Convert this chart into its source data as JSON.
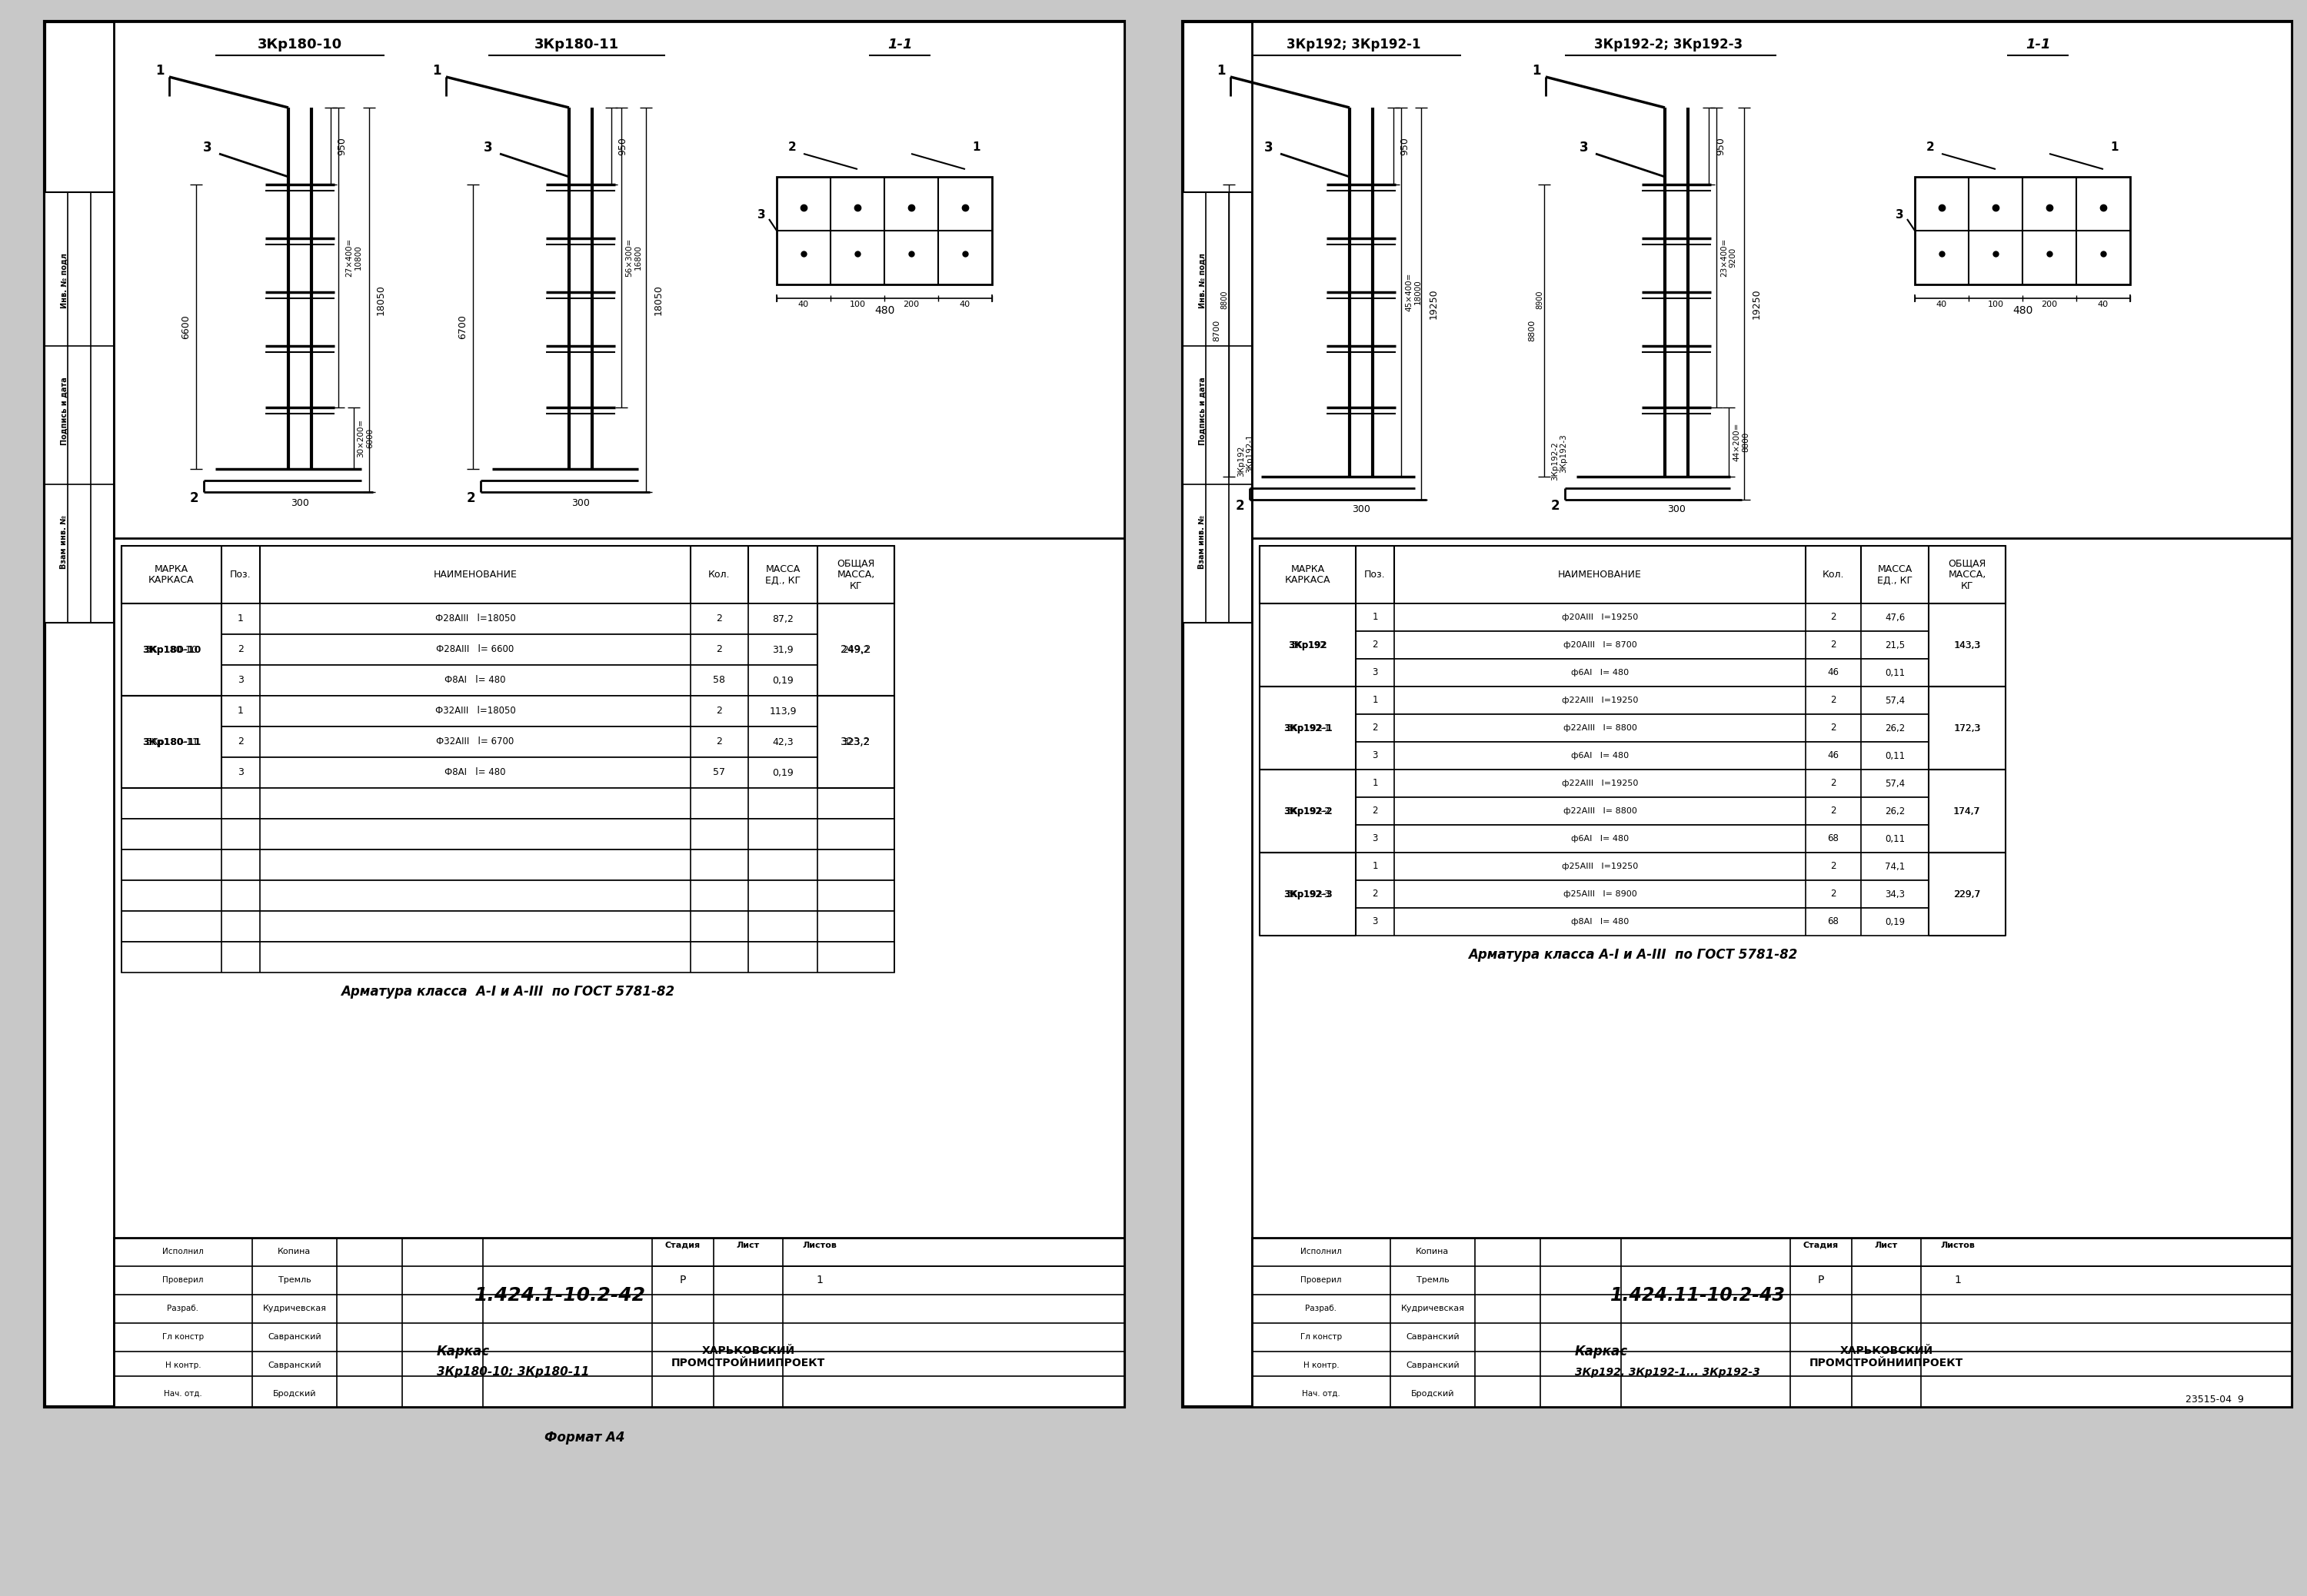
{
  "bg_color": "#c8c8c8",
  "page_bg": "#ffffff",
  "table_left_rows": [
    [
      "",
      "1",
      "Ф28АIII   l=18050",
      "2",
      "87,2",
      ""
    ],
    [
      "3Кр180-10",
      "2",
      "Ф28АIII   l= 6600",
      "2",
      "31,9",
      "249,2"
    ],
    [
      "",
      "3",
      "Ф8АI   l= 480",
      "58",
      "0,19",
      ""
    ],
    [
      "",
      "1",
      "Ф32АIII   l=18050",
      "2",
      "113,9",
      ""
    ],
    [
      "3Кр180-11",
      "2",
      "Ф32АIII   l= 6700",
      "2",
      "42,3",
      "323,2"
    ],
    [
      "",
      "3",
      "Ф8АI   l= 480",
      "57",
      "0,19",
      ""
    ]
  ],
  "table_right_rows": [
    [
      "",
      "1",
      "ф20АIII   l=19250",
      "2",
      "47,6",
      ""
    ],
    [
      "3Кр192",
      "2",
      "ф20АIII   l= 8700",
      "2",
      "21,5",
      "143,3"
    ],
    [
      "",
      "3",
      "ф6АI   l= 480",
      "46",
      "0,11",
      ""
    ],
    [
      "",
      "1",
      "ф22АIII   l=19250",
      "2",
      "57,4",
      ""
    ],
    [
      "3Кр192-1",
      "2",
      "ф22АIII   l= 8800",
      "2",
      "26,2",
      "172,3"
    ],
    [
      "",
      "3",
      "ф6АI   l= 480",
      "46",
      "0,11",
      ""
    ],
    [
      "",
      "1",
      "ф22АIII   l=19250",
      "2",
      "57,4",
      ""
    ],
    [
      "3Кр192-2",
      "2",
      "ф22АIII   l= 8800",
      "2",
      "26,2",
      "174,7"
    ],
    [
      "",
      "3",
      "ф6АI   l= 480",
      "68",
      "0,11",
      ""
    ],
    [
      "",
      "1",
      "ф25АIII   l=19250",
      "2",
      "74,1",
      ""
    ],
    [
      "3Кр192-3",
      "2",
      "ф25АIII   l= 8900",
      "2",
      "34,3",
      "229,7"
    ],
    [
      "",
      "3",
      "ф8АI   l= 480",
      "68",
      "0,19",
      ""
    ]
  ],
  "header_labels": [
    "МАРКА\nКАРКАСА",
    "Поз.",
    "НАИМЕНОВАНИЕ",
    "Кол.",
    "МАССА\nЕД., КГ",
    "ОБЩАЯ\nМАССА,\nКГ"
  ],
  "roles": [
    [
      "Нач. отд.",
      "Бродский"
    ],
    [
      "Н контр.",
      "Савранский"
    ],
    [
      "Гл констр",
      "Савранский"
    ],
    [
      "Разраб.",
      "Кудричевская"
    ],
    [
      "Проверил",
      "Тремль"
    ],
    [
      "Исполнил",
      "Копина"
    ]
  ]
}
